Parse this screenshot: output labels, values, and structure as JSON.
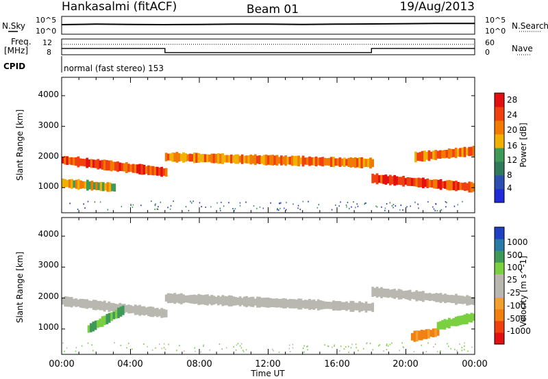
{
  "header": {
    "station": "Hankasalmi (fitACF)",
    "beam": "Beam 01",
    "date": "19/Aug/2013"
  },
  "noise_panel": {
    "left_label": "N.Sky",
    "right_label": "N.Search",
    "left_ticks": [
      "10^5",
      "10^0"
    ],
    "right_ticks": [
      "10^5",
      "10^0"
    ]
  },
  "freq_panel": {
    "left_label_line1": "Freq.",
    "left_label_line2": "[MHz]",
    "left_ticks": [
      "12",
      "8"
    ],
    "right_label": "Nave",
    "right_ticks": [
      "60",
      "0"
    ]
  },
  "cpid": {
    "label": "CPID",
    "value": "normal (fast stereo) 153"
  },
  "xaxis": {
    "title": "Time UT",
    "ticks": [
      "00:00",
      "04:00",
      "08:00",
      "12:00",
      "16:00",
      "20:00",
      "00:00"
    ]
  },
  "colors": {
    "power_scale": [
      "#1f2bd9",
      "#2c4fb0",
      "#2f7a5a",
      "#3f9a5a",
      "#f2b000",
      "#f27a00",
      "#f04010",
      "#e21010"
    ],
    "velocity_scale": [
      "#e21010",
      "#f04010",
      "#f28010",
      "#f2a030",
      "#b8b8b0",
      "#b8b8b0",
      "#7ad040",
      "#3f9a5a",
      "#2a7aa8",
      "#1f40c0"
    ]
  },
  "chart_data": [
    {
      "type": "line",
      "title": "",
      "ylabel": "N.Sky",
      "series": [
        {
          "name": "N.Sky",
          "x_hours": [
            0,
            2,
            4,
            6,
            8,
            10,
            12,
            14,
            16,
            18,
            20,
            22,
            24
          ],
          "values_log10": [
            3.6,
            3.8,
            3.7,
            3.6,
            3.7,
            3.8,
            3.8,
            3.7,
            3.8,
            3.9,
            4.0,
            4.1,
            4.1
          ]
        }
      ]
    },
    {
      "type": "line",
      "title": "",
      "ylabel": "Freq. [MHz]",
      "series": [
        {
          "name": "Freq.",
          "x_hours": [
            0,
            6,
            6,
            18,
            18,
            24
          ],
          "values": [
            10.2,
            10.2,
            8.6,
            8.6,
            10.2,
            10.2
          ]
        },
        {
          "name": "Nave",
          "x_hours": [
            0,
            24
          ],
          "values": [
            43,
            43
          ]
        }
      ]
    },
    {
      "type": "heatmap",
      "title": "",
      "xlabel": "Time UT",
      "ylabel": "Slant Range [km]",
      "colorbar_label": "Power [dB]",
      "colorbar_ticks": [
        "4",
        "8",
        "12",
        "16",
        "20",
        "24",
        "28"
      ],
      "yticks": [
        "1000",
        "2000",
        "3000",
        "4000"
      ],
      "xlim_hours": [
        0,
        24
      ],
      "ylim_km": [
        180,
        4600
      ],
      "echo_bands": [
        {
          "from_h": 0.0,
          "to_h": 6.0,
          "range_km": [
            1900,
            1500
          ],
          "level_db": 26
        },
        {
          "from_h": 0.0,
          "to_h": 3.0,
          "range_km": [
            1150,
            1000
          ],
          "level_db": 20
        },
        {
          "from_h": 6.0,
          "to_h": 18.0,
          "range_km": [
            2000,
            1800
          ],
          "level_db": 22
        },
        {
          "from_h": 18.0,
          "to_h": 24.0,
          "range_km": [
            1300,
            1000
          ],
          "level_db": 26
        },
        {
          "from_h": 20.5,
          "to_h": 24.0,
          "range_km": [
            2000,
            2200
          ],
          "level_db": 24
        }
      ]
    },
    {
      "type": "heatmap",
      "title": "",
      "xlabel": "Time UT",
      "ylabel": "Slant Range [km]",
      "colorbar_label": "Velocity [m s^-1]",
      "colorbar_ticks": [
        "1000",
        "500",
        "100",
        "25",
        "-25",
        "-100",
        "-500",
        "-1000"
      ],
      "yticks": [
        "1000",
        "2000",
        "3000",
        "4000"
      ],
      "xlim_hours": [
        0,
        24
      ],
      "ylim_km": [
        180,
        4600
      ],
      "echo_bands": [
        {
          "from_h": 0.0,
          "to_h": 6.0,
          "range_km": [
            1900,
            1500
          ],
          "velocity": 0
        },
        {
          "from_h": 1.5,
          "to_h": 3.5,
          "range_km": [
            1000,
            1600
          ],
          "velocity": 300
        },
        {
          "from_h": 6.0,
          "to_h": 18.0,
          "range_km": [
            2000,
            1700
          ],
          "velocity": 0
        },
        {
          "from_h": 18.0,
          "to_h": 24.0,
          "range_km": [
            2200,
            1900
          ],
          "velocity": 0
        },
        {
          "from_h": 20.3,
          "to_h": 21.8,
          "range_km": [
            750,
            900
          ],
          "velocity": -300
        },
        {
          "from_h": 21.8,
          "to_h": 24.0,
          "range_km": [
            1100,
            1400
          ],
          "velocity": 120
        }
      ]
    }
  ]
}
